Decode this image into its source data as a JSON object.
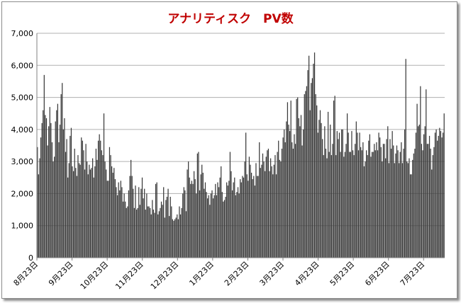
{
  "chart_data": {
    "type": "bar",
    "title": "アナリティスク　PV数",
    "xlabel": "",
    "ylabel": "",
    "ylim": [
      0,
      7000
    ],
    "yticks": [
      "0",
      "1,000",
      "2,000",
      "3,000",
      "4,000",
      "5,000",
      "6,000",
      "7,000"
    ],
    "xticks": [
      "8月23日",
      "9月23日",
      "10月23日",
      "11月23日",
      "12月23日",
      "1月23日",
      "2月23日",
      "3月23日",
      "4月23日",
      "5月23日",
      "6月23日",
      "7月23日"
    ],
    "grid": "horizontal",
    "legend": "none",
    "bar_color": "#3a3a3a",
    "title_color": "#c00000",
    "values": [
      3450,
      2600,
      3100,
      3750,
      4200,
      4600,
      5700,
      4450,
      4350,
      3500,
      4100,
      4700,
      4200,
      3600,
      3000,
      3150,
      4250,
      4600,
      4800,
      3600,
      4150,
      5100,
      5450,
      4000,
      4350,
      3300,
      3700,
      2500,
      2950,
      3800,
      4050,
      2850,
      2700,
      3400,
      2800,
      2550,
      3200,
      2950,
      2900,
      3750,
      3650,
      3350,
      2750,
      3550,
      3000,
      2600,
      2900,
      2750,
      2800,
      3100,
      2500,
      2850,
      3400,
      3050,
      3650,
      3850,
      3650,
      3350,
      3200,
      4500,
      3000,
      2750,
      2400,
      2400,
      3450,
      3200,
      2850,
      2650,
      2800,
      2450,
      2200,
      1950,
      2350,
      2100,
      2400,
      2200,
      1750,
      2000,
      1750,
      1550,
      1600,
      2100,
      2550,
      3050,
      2550,
      2150,
      1550,
      2250,
      1500,
      1550,
      2200,
      1650,
      2150,
      2500,
      1850,
      2150,
      1500,
      2000,
      1600,
      1600,
      1550,
      1350,
      1800,
      1500,
      1400,
      2300,
      2350,
      1350,
      1450,
      1550,
      1750,
      1650,
      2200,
      1250,
      1800,
      1900,
      2150,
      1300,
      1900,
      1600,
      1200,
      1150,
      1200,
      1250,
      1350,
      1200,
      1600,
      1350,
      1550,
      2000,
      2200,
      2100,
      1450,
      2750,
      3000,
      2500,
      2300,
      2400,
      2300,
      2700,
      2450,
      2000,
      3250,
      3300,
      2100,
      2600,
      2900,
      2650,
      2150,
      2350,
      2050,
      1850,
      1950,
      1650,
      2000,
      2100,
      1850,
      1950,
      2300,
      1950,
      2350,
      2200,
      2500,
      2850,
      2050,
      1750,
      1800,
      1900,
      2350,
      2250,
      2400,
      3300,
      2700,
      2100,
      2350,
      2500,
      1950,
      2050,
      2200,
      2000,
      2450,
      2350,
      2550,
      2500,
      3000,
      3900,
      2600,
      2400,
      3150,
      2900,
      2650,
      2450,
      2550,
      2250,
      2950,
      2550,
      2550,
      3600,
      2800,
      2900,
      3250,
      3000,
      2700,
      3150,
      3350,
      3400,
      2700,
      3100,
      2850,
      2600,
      2900,
      3200,
      2600,
      3300,
      3650,
      3050,
      3000,
      3400,
      3750,
      4000,
      3600,
      4250,
      4850,
      4150,
      3950,
      4900,
      3600,
      3400,
      3850,
      3550,
      4950,
      5000,
      4350,
      4100,
      4450,
      3500,
      4000,
      5100,
      5200,
      5350,
      5850,
      6300,
      4600,
      5450,
      5600,
      6050,
      6400,
      5100,
      4750,
      3900,
      4300,
      4600,
      4200,
      3700,
      3200,
      4100,
      3400,
      3100,
      4550,
      3300,
      4150,
      3200,
      3550,
      4900,
      5050,
      3200,
      3950,
      3700,
      3900,
      3300,
      4000,
      4000,
      3150,
      3300,
      3550,
      4500,
      3900,
      3300,
      3300,
      3950,
      3350,
      3200,
      3550,
      4250,
      3900,
      3350,
      3900,
      3450,
      3350,
      3600,
      2850,
      3000,
      3350,
      3200,
      3650,
      3850,
      3150,
      3300,
      3300,
      3550,
      3350,
      3600,
      3350,
      3900,
      3750,
      3450,
      3000,
      3550,
      3550,
      3100,
      3700,
      4100,
      2950,
      3700,
      3400,
      3950,
      3500,
      2950,
      3250,
      3500,
      3350,
      2950,
      3300,
      3600,
      2950,
      3400,
      4000,
      6200,
      3000,
      2950,
      3100,
      2600,
      2600,
      3050,
      3250,
      3400,
      3900,
      4800,
      4100,
      4150,
      5350,
      3550,
      3350,
      3850,
      4100,
      5250,
      3550,
      3550,
      3800,
      3400,
      2750,
      3200,
      3450,
      3900,
      4000,
      3650,
      3800,
      4050,
      3950,
      3750,
      3900,
      4500
    ]
  }
}
